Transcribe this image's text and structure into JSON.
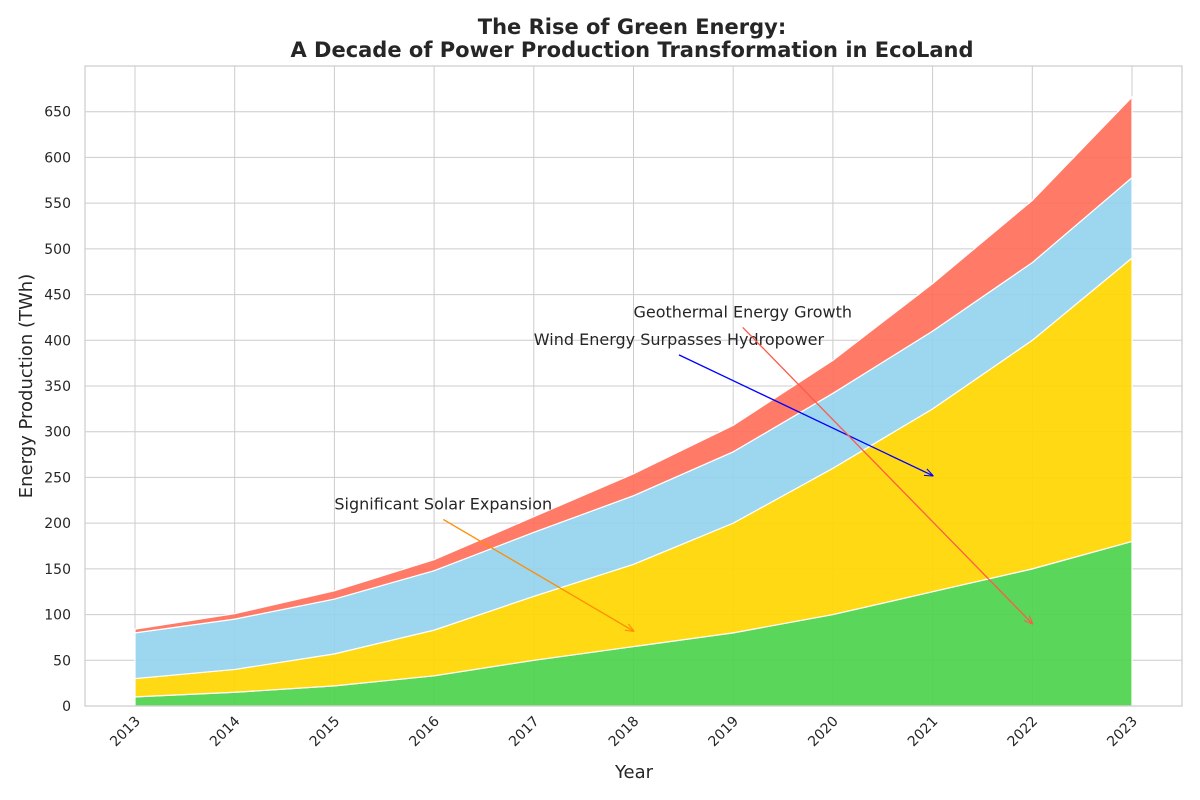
{
  "chart_data": {
    "type": "area",
    "stacked": true,
    "title_line1": "The Rise of Green Energy:",
    "title_line2": "A Decade of Power Production Transformation in EcoLand",
    "xlabel": "Year",
    "ylabel": "Energy Production (TWh)",
    "x": [
      "2013",
      "2014",
      "2015",
      "2016",
      "2017",
      "2018",
      "2019",
      "2020",
      "2021",
      "2022",
      "2023"
    ],
    "ylim": [
      0,
      700
    ],
    "yticks": [
      0,
      50,
      100,
      150,
      200,
      250,
      300,
      350,
      400,
      450,
      500,
      550,
      600,
      650
    ],
    "grid": true,
    "series": [
      {
        "color": "#4cd44c",
        "values": [
          10,
          15,
          22,
          33,
          50,
          65,
          80,
          100,
          125,
          150,
          180
        ]
      },
      {
        "color": "#ffd700",
        "values": [
          20,
          25,
          35,
          50,
          70,
          90,
          120,
          160,
          200,
          250,
          310
        ]
      },
      {
        "color": "#95d2ee",
        "values": [
          50,
          55,
          60,
          65,
          70,
          75,
          78,
          82,
          85,
          85,
          88
        ]
      },
      {
        "color": "#ff6f5a",
        "values": [
          4,
          6,
          9,
          12,
          17,
          24,
          29,
          36,
          52,
          68,
          88
        ]
      }
    ],
    "annotations": [
      {
        "text": "Significant Solar Expansion",
        "text_x": 2015,
        "text_y": 215,
        "arrow_x": 2018,
        "arrow_y": 82,
        "color": "#ff8c00"
      },
      {
        "text": "Wind Energy Surpasses Hydropower",
        "text_x": 2017,
        "text_y": 395,
        "arrow_x": 2021,
        "arrow_y": 252,
        "color": "#0000ff"
      },
      {
        "text": "Geothermal Energy Growth",
        "text_x": 2018,
        "text_y": 425,
        "arrow_x": 2022,
        "arrow_y": 90,
        "color": "#ff5a4a"
      }
    ]
  }
}
